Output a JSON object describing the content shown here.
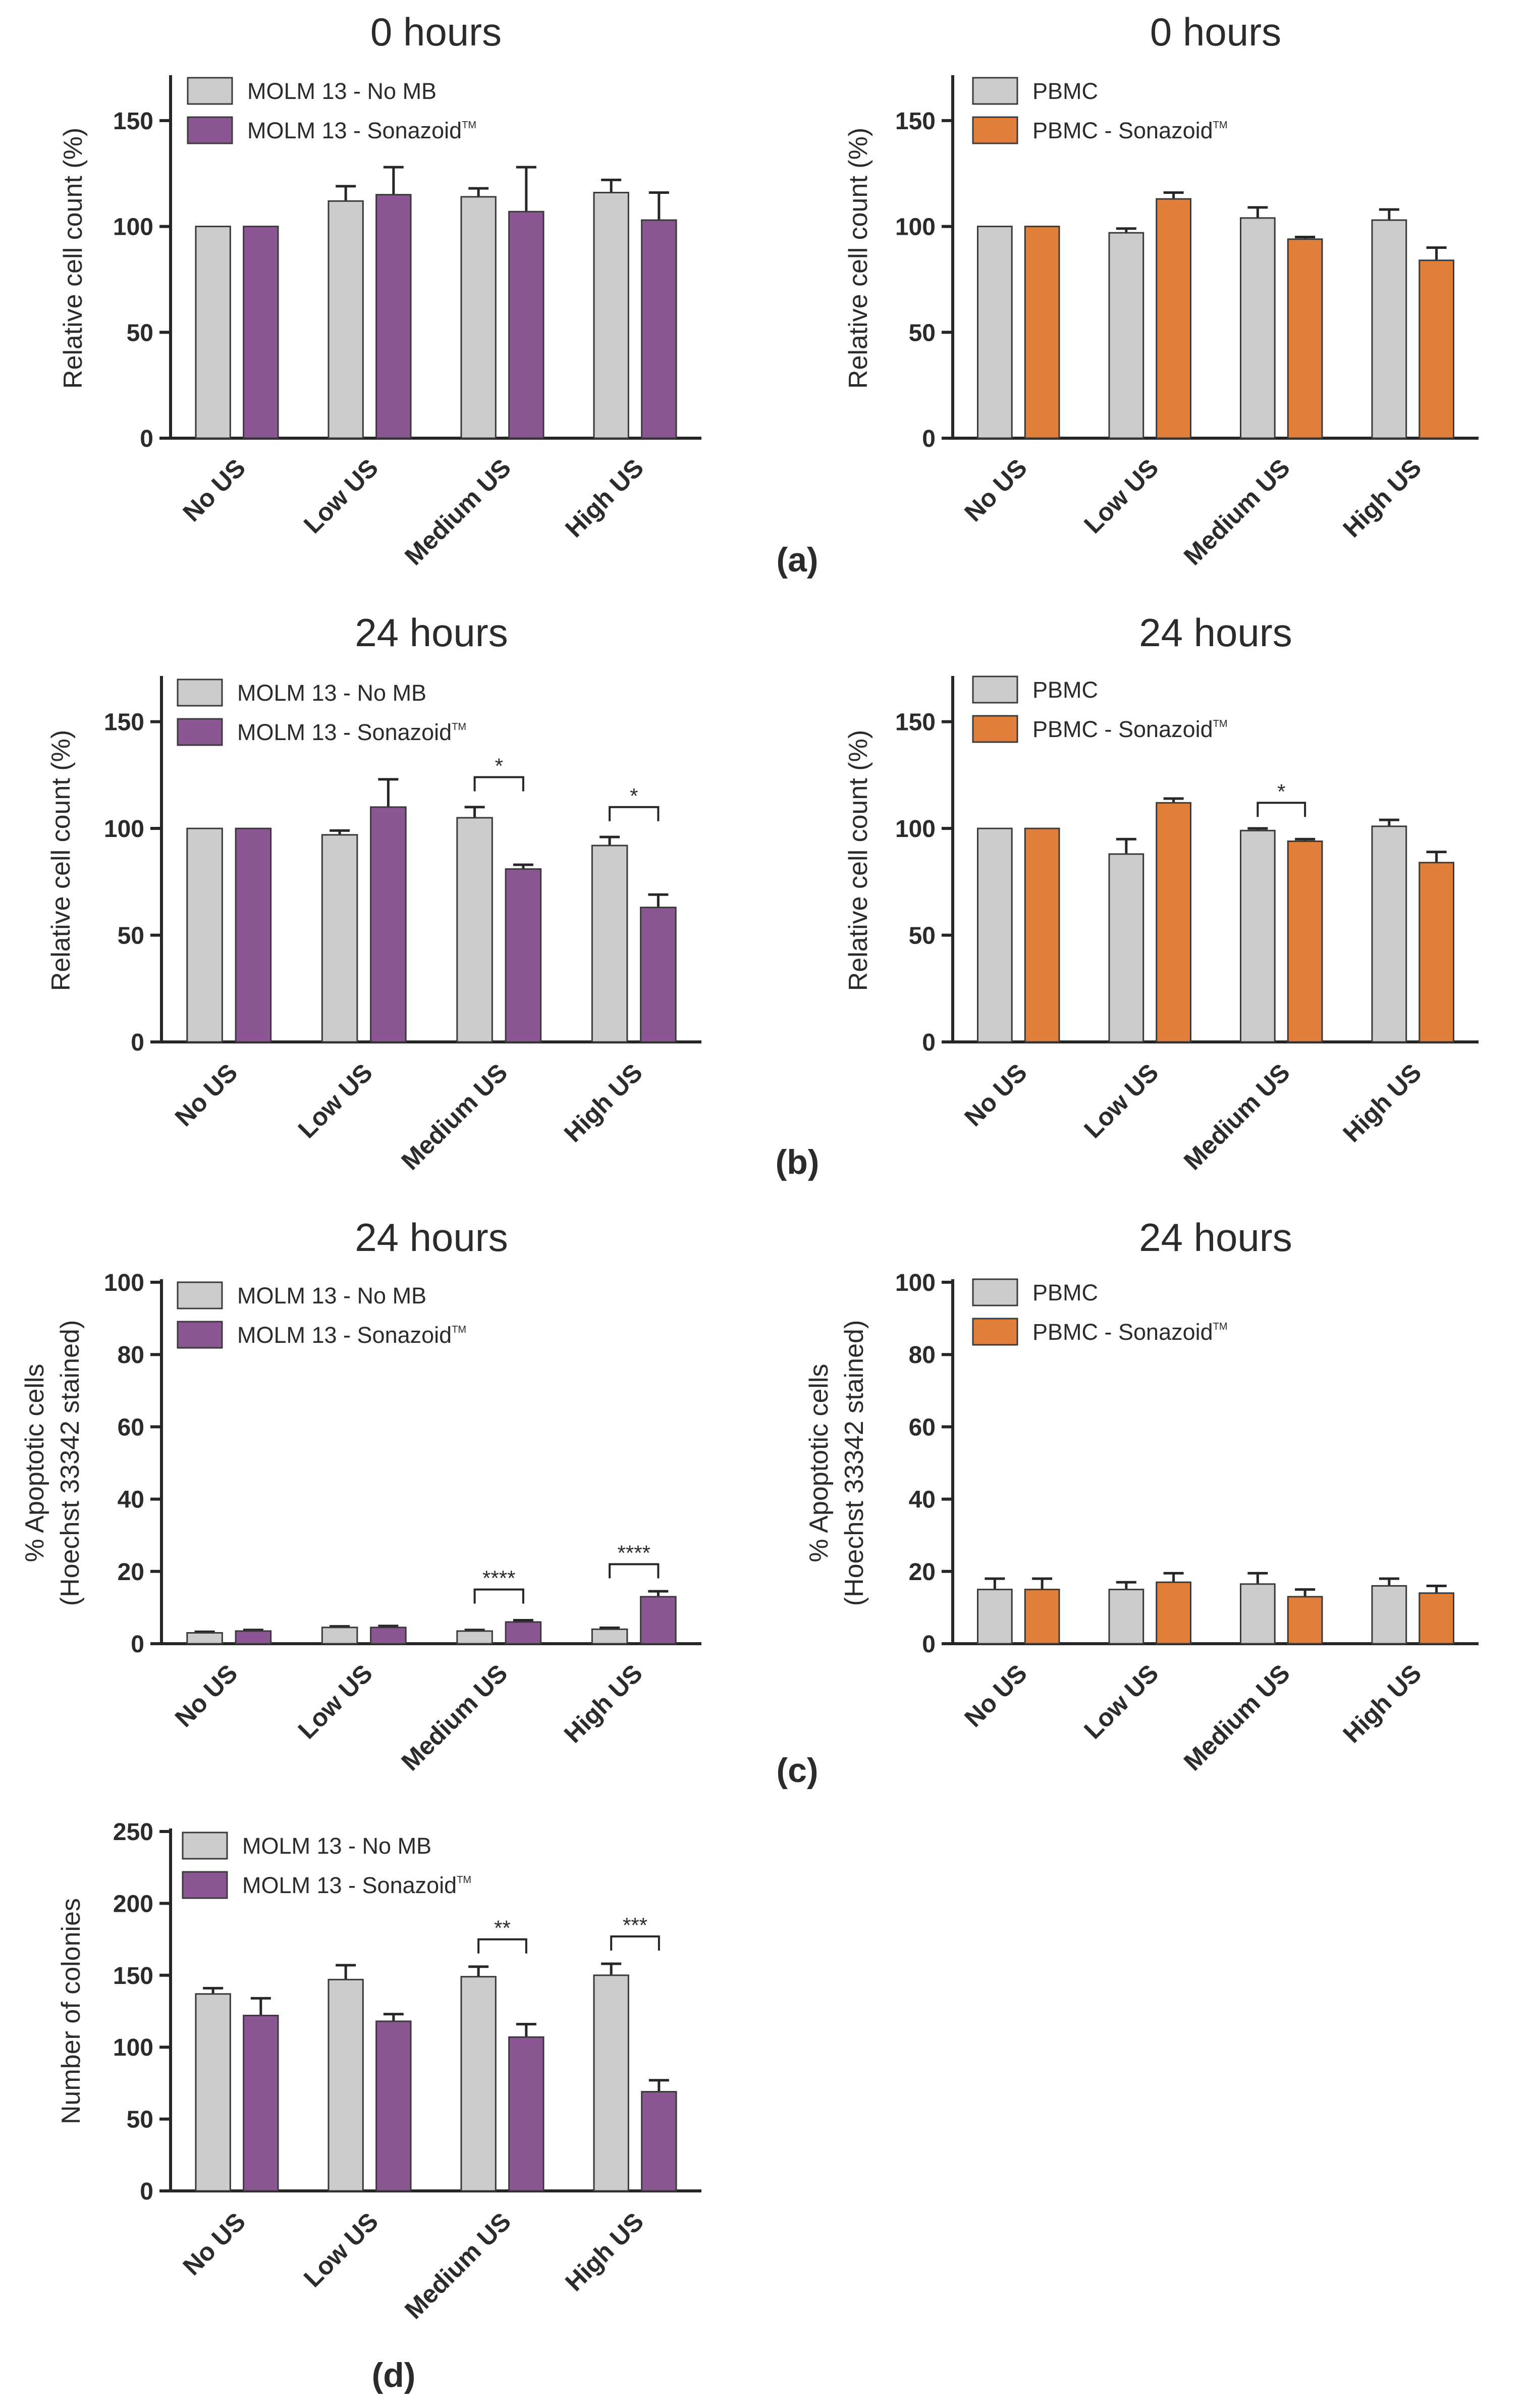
{
  "colors": {
    "control": "#cbcdcd",
    "molm": "#8c5594",
    "pbmc": "#e17f3a",
    "axis": "#262626"
  },
  "panel_labels": [
    "(a)",
    "(b)",
    "(c)",
    "(d)"
  ],
  "chart_data": [
    {
      "type": "bar",
      "title": "0 hours",
      "ylabel": "Relative cell count (%)",
      "ylim": [
        0,
        170
      ],
      "yticks": [
        0,
        50,
        100,
        150
      ],
      "categories": [
        "No US",
        "Low US",
        "Medium US",
        "High US"
      ],
      "series": [
        {
          "name": "MOLM 13 - No MB",
          "legend_label": "MOLM 13 - No MB",
          "legend_tm": "",
          "color": "#cbcdcd",
          "values": [
            100,
            112,
            114,
            116
          ],
          "errors": [
            0,
            7,
            4,
            6
          ]
        },
        {
          "name": "MOLM 13 - Sonazoid™",
          "legend_label": "MOLM 13 - Sonazoid",
          "legend_tm": "TM",
          "color": "#8c5594",
          "values": [
            100,
            115,
            107,
            103
          ],
          "errors": [
            0,
            13,
            21,
            13
          ]
        }
      ],
      "significance": []
    },
    {
      "type": "bar",
      "title": "0 hours",
      "ylabel": "Relative cell count (%)",
      "ylim": [
        0,
        170
      ],
      "yticks": [
        0,
        50,
        100,
        150
      ],
      "categories": [
        "No US",
        "Low US",
        "Medium US",
        "High US"
      ],
      "series": [
        {
          "name": "PBMC",
          "legend_label": "PBMC",
          "legend_tm": "",
          "color": "#cbcdcd",
          "values": [
            100,
            97,
            104,
            103
          ],
          "errors": [
            0,
            2,
            5,
            5
          ]
        },
        {
          "name": "PBMC - Sonazoid™",
          "legend_label": "PBMC - Sonazoid",
          "legend_tm": "TM",
          "color": "#e17f3a",
          "values": [
            100,
            113,
            94,
            84
          ],
          "errors": [
            0,
            3,
            1,
            6
          ]
        }
      ],
      "significance": []
    },
    {
      "type": "bar",
      "title": "24 hours",
      "ylabel": "Relative cell count (%)",
      "ylim": [
        0,
        170
      ],
      "yticks": [
        0,
        50,
        100,
        150
      ],
      "categories": [
        "No US",
        "Low US",
        "Medium US",
        "High US"
      ],
      "series": [
        {
          "name": "MOLM 13 - No MB",
          "legend_label": "MOLM 13 - No MB",
          "legend_tm": "",
          "color": "#cbcdcd",
          "values": [
            100,
            97,
            105,
            92
          ],
          "errors": [
            0,
            2,
            5,
            4
          ]
        },
        {
          "name": "MOLM 13 - Sonazoid™",
          "legend_label": "MOLM 13 - Sonazoid",
          "legend_tm": "TM",
          "color": "#8c5594",
          "values": [
            100,
            110,
            81,
            63
          ],
          "errors": [
            0,
            13,
            2,
            6
          ]
        }
      ],
      "significance": [
        {
          "category_index": 2,
          "label": "*",
          "at": 124
        },
        {
          "category_index": 3,
          "label": "*",
          "at": 110
        }
      ]
    },
    {
      "type": "bar",
      "title": "24 hours",
      "ylabel": "Relative cell count (%)",
      "ylim": [
        0,
        170
      ],
      "yticks": [
        0,
        50,
        100,
        150
      ],
      "categories": [
        "No US",
        "Low US",
        "Medium US",
        "High US"
      ],
      "series": [
        {
          "name": "PBMC",
          "legend_label": "PBMC",
          "legend_tm": "",
          "color": "#cbcdcd",
          "values": [
            100,
            88,
            99,
            101
          ],
          "errors": [
            0,
            7,
            1,
            3
          ]
        },
        {
          "name": "PBMC - Sonazoid™",
          "legend_label": "PBMC - Sonazoid",
          "legend_tm": "TM",
          "color": "#e17f3a",
          "values": [
            100,
            112,
            94,
            84
          ],
          "errors": [
            0,
            2,
            1,
            5
          ]
        }
      ],
      "significance": [
        {
          "category_index": 2,
          "label": "*",
          "at": 112
        }
      ]
    },
    {
      "type": "bar",
      "title": "24 hours",
      "ylabel": "% Apoptotic cells",
      "ylabel2": "(Hoechst 33342 stained)",
      "ylim": [
        0,
        100
      ],
      "yticks": [
        0,
        20,
        40,
        60,
        80,
        100
      ],
      "categories": [
        "No US",
        "Low US",
        "Medium US",
        "High US"
      ],
      "series": [
        {
          "name": "MOLM 13 - No MB",
          "legend_label": "MOLM 13 - No MB",
          "legend_tm": "",
          "color": "#cbcdcd",
          "values": [
            3,
            4.5,
            3.5,
            4
          ],
          "errors": [
            0.3,
            0.3,
            0.3,
            0.4
          ]
        },
        {
          "name": "MOLM 13 - Sonazoid™",
          "legend_label": "MOLM 13 - Sonazoid",
          "legend_tm": "TM",
          "color": "#8c5594",
          "values": [
            3.5,
            4.5,
            6,
            13
          ],
          "errors": [
            0.3,
            0.4,
            0.5,
            1.5
          ]
        }
      ],
      "significance": [
        {
          "category_index": 2,
          "label": "****",
          "at": 15
        },
        {
          "category_index": 3,
          "label": "****",
          "at": 22
        }
      ]
    },
    {
      "type": "bar",
      "title": "24 hours",
      "ylabel": "% Apoptotic cells",
      "ylabel2": "(Hoechst 33342 stained)",
      "ylim": [
        0,
        100
      ],
      "yticks": [
        0,
        20,
        40,
        60,
        80,
        100
      ],
      "categories": [
        "No US",
        "Low US",
        "Medium US",
        "High US"
      ],
      "series": [
        {
          "name": "PBMC",
          "legend_label": "PBMC",
          "legend_tm": "",
          "color": "#cbcdcd",
          "values": [
            15,
            15,
            16.5,
            16
          ],
          "errors": [
            3,
            2,
            3,
            2
          ]
        },
        {
          "name": "PBMC - Sonazoid™",
          "legend_label": "PBMC - Sonazoid",
          "legend_tm": "TM",
          "color": "#e17f3a",
          "values": [
            15,
            17,
            13,
            14
          ],
          "errors": [
            3,
            2.5,
            2,
            2
          ]
        }
      ],
      "significance": []
    },
    {
      "type": "bar",
      "title": "",
      "ylabel": "Number of colonies",
      "ylim": [
        0,
        250
      ],
      "yticks": [
        0,
        50,
        100,
        150,
        200,
        250
      ],
      "categories": [
        "No US",
        "Low US",
        "Medium US",
        "High US"
      ],
      "series": [
        {
          "name": "MOLM 13 - No MB",
          "legend_label": "MOLM 13 - No MB",
          "legend_tm": "",
          "color": "#cbcdcd",
          "values": [
            137,
            147,
            149,
            150
          ],
          "errors": [
            4,
            10,
            7,
            8
          ]
        },
        {
          "name": "MOLM 13 - Sonazoid™",
          "legend_label": "MOLM 13 - Sonazoid",
          "legend_tm": "TM",
          "color": "#8c5594",
          "values": [
            122,
            118,
            107,
            69
          ],
          "errors": [
            12,
            5,
            9,
            8
          ]
        }
      ],
      "significance": [
        {
          "category_index": 2,
          "label": "**",
          "at": 175
        },
        {
          "category_index": 3,
          "label": "***",
          "at": 177
        }
      ]
    }
  ]
}
